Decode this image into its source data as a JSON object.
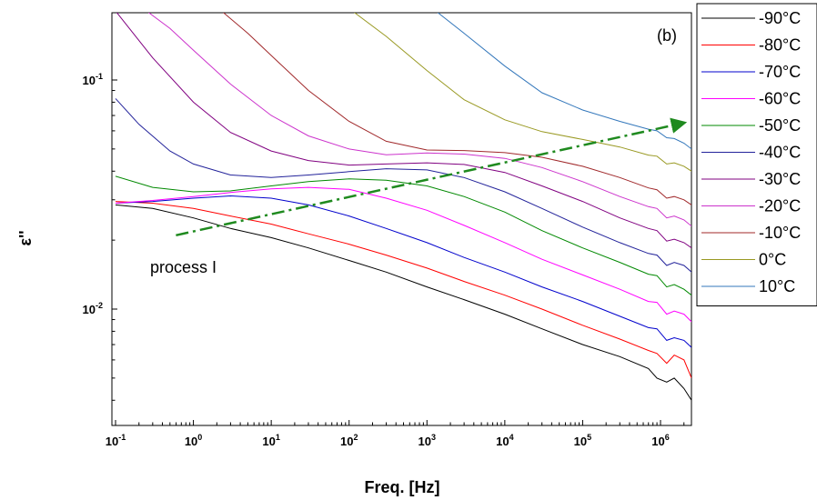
{
  "chart_data": {
    "type": "line",
    "panel_label": "(b)",
    "xlabel": "Freq. [Hz]",
    "ylabel": "ε''",
    "xscale": "log",
    "yscale": "log",
    "xlim": [
      0.1,
      2500000.0
    ],
    "ylim": [
      0.003,
      0.2
    ],
    "x_ticks": [
      {
        "value": 0.1,
        "base": "10",
        "exp": "-1"
      },
      {
        "value": 1,
        "base": "10",
        "exp": "0"
      },
      {
        "value": 10,
        "base": "10",
        "exp": "1"
      },
      {
        "value": 100,
        "base": "10",
        "exp": "2"
      },
      {
        "value": 1000,
        "base": "10",
        "exp": "3"
      },
      {
        "value": 10000,
        "base": "10",
        "exp": "4"
      },
      {
        "value": 100000,
        "base": "10",
        "exp": "5"
      },
      {
        "value": 1000000,
        "base": "10",
        "exp": "6"
      }
    ],
    "y_ticks": [
      {
        "value": 0.1,
        "base": "10",
        "exp": "-1"
      },
      {
        "value": 0.01,
        "base": "10",
        "exp": "-2"
      }
    ],
    "legend_position": "right, outside plot",
    "annotation": {
      "text": "process I",
      "arrow_from": [
        3.0,
        0.021
      ],
      "arrow_to": [
        2000000.0,
        0.065
      ],
      "arrow_color": "#1f8a1f"
    },
    "series": [
      {
        "name": "-90°C",
        "color": "#000000",
        "points": [
          [
            0.1,
            0.0285
          ],
          [
            0.3,
            0.0275
          ],
          [
            1,
            0.025
          ],
          [
            3,
            0.0225
          ],
          [
            10,
            0.0205
          ],
          [
            30,
            0.0185
          ],
          [
            100,
            0.0163
          ],
          [
            300,
            0.0145
          ],
          [
            1000,
            0.0125
          ],
          [
            3000,
            0.011
          ],
          [
            10000,
            0.0095
          ],
          [
            30000,
            0.0082
          ],
          [
            100000,
            0.007
          ],
          [
            300000,
            0.0062
          ],
          [
            700000,
            0.0055
          ],
          [
            900000,
            0.005
          ],
          [
            1200000,
            0.0048
          ],
          [
            1500000,
            0.005
          ],
          [
            2000000,
            0.0045
          ],
          [
            2500000,
            0.004
          ]
        ]
      },
      {
        "name": "-80°C",
        "color": "#ff0000",
        "points": [
          [
            0.1,
            0.0295
          ],
          [
            0.3,
            0.029
          ],
          [
            1,
            0.0275
          ],
          [
            3,
            0.0255
          ],
          [
            10,
            0.0235
          ],
          [
            30,
            0.0213
          ],
          [
            100,
            0.0192
          ],
          [
            300,
            0.0172
          ],
          [
            1000,
            0.0151
          ],
          [
            3000,
            0.0132
          ],
          [
            10000,
            0.0115
          ],
          [
            30000,
            0.01
          ],
          [
            100000,
            0.0085
          ],
          [
            300000,
            0.0074
          ],
          [
            700000,
            0.0066
          ],
          [
            900000,
            0.0064
          ],
          [
            1200000,
            0.0058
          ],
          [
            1500000,
            0.0063
          ],
          [
            2000000,
            0.006
          ],
          [
            2500000,
            0.005
          ]
        ]
      },
      {
        "name": "-70°C",
        "color": "#0000cc",
        "points": [
          [
            0.1,
            0.029
          ],
          [
            0.3,
            0.0295
          ],
          [
            1,
            0.0305
          ],
          [
            3,
            0.0312
          ],
          [
            10,
            0.0305
          ],
          [
            30,
            0.0285
          ],
          [
            100,
            0.0255
          ],
          [
            300,
            0.0225
          ],
          [
            1000,
            0.0195
          ],
          [
            3000,
            0.0168
          ],
          [
            10000,
            0.0145
          ],
          [
            30000,
            0.0125
          ],
          [
            100000,
            0.0108
          ],
          [
            300000,
            0.0093
          ],
          [
            700000,
            0.0083
          ],
          [
            900000,
            0.0082
          ],
          [
            1200000,
            0.0073
          ],
          [
            1500000,
            0.0075
          ],
          [
            2000000,
            0.0073
          ],
          [
            2500000,
            0.0068
          ]
        ]
      },
      {
        "name": "-60°C",
        "color": "#ff00ff",
        "points": [
          [
            0.1,
            0.029
          ],
          [
            0.3,
            0.0298
          ],
          [
            1,
            0.031
          ],
          [
            3,
            0.0323
          ],
          [
            10,
            0.0335
          ],
          [
            30,
            0.034
          ],
          [
            100,
            0.0333
          ],
          [
            300,
            0.0305
          ],
          [
            1000,
            0.027
          ],
          [
            3000,
            0.0232
          ],
          [
            10000,
            0.0195
          ],
          [
            30000,
            0.0165
          ],
          [
            100000,
            0.0141
          ],
          [
            300000,
            0.0122
          ],
          [
            700000,
            0.0108
          ],
          [
            900000,
            0.0107
          ],
          [
            1200000,
            0.0095
          ],
          [
            1500000,
            0.0098
          ],
          [
            2000000,
            0.0095
          ],
          [
            2500000,
            0.0088
          ]
        ]
      },
      {
        "name": "-50°C",
        "color": "#008800",
        "points": [
          [
            0.1,
            0.038
          ],
          [
            0.3,
            0.034
          ],
          [
            1,
            0.0325
          ],
          [
            3,
            0.0328
          ],
          [
            10,
            0.0345
          ],
          [
            30,
            0.036
          ],
          [
            100,
            0.037
          ],
          [
            300,
            0.0365
          ],
          [
            1000,
            0.0345
          ],
          [
            3000,
            0.031
          ],
          [
            10000,
            0.0265
          ],
          [
            30000,
            0.022
          ],
          [
            100000,
            0.0185
          ],
          [
            300000,
            0.016
          ],
          [
            700000,
            0.0142
          ],
          [
            900000,
            0.014
          ],
          [
            1200000,
            0.0125
          ],
          [
            1500000,
            0.0128
          ],
          [
            2000000,
            0.0122
          ],
          [
            2500000,
            0.0115
          ]
        ]
      },
      {
        "name": "-40°C",
        "color": "#22229a",
        "points": [
          [
            0.1,
            0.083
          ],
          [
            0.2,
            0.064
          ],
          [
            0.5,
            0.049
          ],
          [
            1,
            0.043
          ],
          [
            3,
            0.0385
          ],
          [
            10,
            0.0375
          ],
          [
            30,
            0.0385
          ],
          [
            100,
            0.0398
          ],
          [
            300,
            0.041
          ],
          [
            1000,
            0.0405
          ],
          [
            3000,
            0.0375
          ],
          [
            10000,
            0.0325
          ],
          [
            30000,
            0.0275
          ],
          [
            100000,
            0.0228
          ],
          [
            300000,
            0.0195
          ],
          [
            700000,
            0.0175
          ],
          [
            900000,
            0.0172
          ],
          [
            1200000,
            0.0155
          ],
          [
            1500000,
            0.016
          ],
          [
            2000000,
            0.0155
          ],
          [
            2500000,
            0.0145
          ]
        ]
      },
      {
        "name": "-30°C",
        "color": "#800080",
        "points": [
          [
            0.1,
            0.2
          ],
          [
            0.3,
            0.125
          ],
          [
            1,
            0.08
          ],
          [
            3,
            0.059
          ],
          [
            10,
            0.049
          ],
          [
            30,
            0.0445
          ],
          [
            100,
            0.0425
          ],
          [
            300,
            0.043
          ],
          [
            1000,
            0.0435
          ],
          [
            3000,
            0.0428
          ],
          [
            10000,
            0.0395
          ],
          [
            30000,
            0.0345
          ],
          [
            100000,
            0.0295
          ],
          [
            300000,
            0.025
          ],
          [
            700000,
            0.0225
          ],
          [
            900000,
            0.022
          ],
          [
            1200000,
            0.0198
          ],
          [
            1500000,
            0.0202
          ],
          [
            2000000,
            0.0195
          ],
          [
            2500000,
            0.0185
          ]
        ]
      },
      {
        "name": "-20°C",
        "color": "#cc33cc",
        "points": [
          [
            0.25,
            0.2
          ],
          [
            0.5,
            0.168
          ],
          [
            1,
            0.135
          ],
          [
            3,
            0.096
          ],
          [
            10,
            0.07
          ],
          [
            30,
            0.057
          ],
          [
            100,
            0.05
          ],
          [
            300,
            0.0472
          ],
          [
            1000,
            0.048
          ],
          [
            3000,
            0.0475
          ],
          [
            10000,
            0.0455
          ],
          [
            30000,
            0.0415
          ],
          [
            100000,
            0.036
          ],
          [
            300000,
            0.031
          ],
          [
            700000,
            0.028
          ],
          [
            900000,
            0.0275
          ],
          [
            1200000,
            0.025
          ],
          [
            1500000,
            0.0255
          ],
          [
            2000000,
            0.0245
          ],
          [
            2500000,
            0.023
          ]
        ]
      },
      {
        "name": "-10°C",
        "color": "#a0282a",
        "points": [
          [
            2.3,
            0.2
          ],
          [
            5,
            0.16
          ],
          [
            10,
            0.128
          ],
          [
            30,
            0.09
          ],
          [
            100,
            0.066
          ],
          [
            300,
            0.054
          ],
          [
            1000,
            0.0495
          ],
          [
            3000,
            0.0492
          ],
          [
            10000,
            0.0482
          ],
          [
            30000,
            0.046
          ],
          [
            100000,
            0.042
          ],
          [
            300000,
            0.0375
          ],
          [
            700000,
            0.0338
          ],
          [
            900000,
            0.0332
          ],
          [
            1200000,
            0.0305
          ],
          [
            1500000,
            0.031
          ],
          [
            2000000,
            0.03
          ],
          [
            2500000,
            0.0285
          ]
        ]
      },
      {
        "name": "0°C",
        "color": "#999922",
        "points": [
          [
            110,
            0.2
          ],
          [
            300,
            0.155
          ],
          [
            1000,
            0.11
          ],
          [
            3000,
            0.082
          ],
          [
            10000,
            0.067
          ],
          [
            30000,
            0.0595
          ],
          [
            100000,
            0.055
          ],
          [
            300000,
            0.051
          ],
          [
            700000,
            0.047
          ],
          [
            900000,
            0.0465
          ],
          [
            1200000,
            0.043
          ],
          [
            1500000,
            0.0435
          ],
          [
            2000000,
            0.042
          ],
          [
            2500000,
            0.04
          ]
        ]
      },
      {
        "name": "10°C",
        "color": "#3377bb",
        "points": [
          [
            1300,
            0.2
          ],
          [
            3000,
            0.16
          ],
          [
            10000,
            0.115
          ],
          [
            30000,
            0.088
          ],
          [
            100000,
            0.074
          ],
          [
            300000,
            0.066
          ],
          [
            700000,
            0.061
          ],
          [
            900000,
            0.06
          ],
          [
            1200000,
            0.056
          ],
          [
            1500000,
            0.0555
          ],
          [
            2000000,
            0.053
          ],
          [
            2500000,
            0.05
          ]
        ]
      }
    ]
  }
}
